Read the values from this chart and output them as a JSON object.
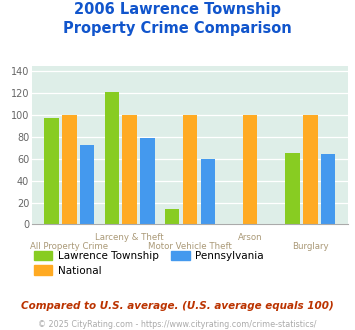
{
  "title": "2006 Lawrence Township\nProperty Crime Comparison",
  "categories": [
    "All Property Crime",
    "Larceny & Theft",
    "Motor Vehicle Theft",
    "Arson",
    "Burglary"
  ],
  "series": {
    "Lawrence Township": [
      97,
      121,
      14,
      0,
      65
    ],
    "National": [
      100,
      100,
      100,
      100,
      100
    ],
    "Pennsylvania": [
      73,
      79,
      60,
      0,
      64
    ]
  },
  "colors": {
    "Lawrence Township": "#88cc22",
    "National": "#ffaa22",
    "Pennsylvania": "#4499ee"
  },
  "ylim": [
    0,
    145
  ],
  "yticks": [
    0,
    20,
    40,
    60,
    80,
    100,
    120,
    140
  ],
  "background_color": "#deeee8",
  "title_color": "#1155cc",
  "title_fontsize": 10.5,
  "xlabel_top_color": "#aa9977",
  "xlabel_bot_color": "#aa9977",
  "footnote1": "Compared to U.S. average. (U.S. average equals 100)",
  "footnote2": "© 2025 CityRating.com - https://www.cityrating.com/crime-statistics/",
  "footnote1_color": "#bb3300",
  "footnote2_color": "#aaaaaa",
  "xtick_top": [
    "",
    "Larceny & Theft",
    "",
    "Arson",
    ""
  ],
  "xtick_bot": [
    "All Property Crime",
    "",
    "Motor Vehicle Theft",
    "",
    "Burglary"
  ]
}
